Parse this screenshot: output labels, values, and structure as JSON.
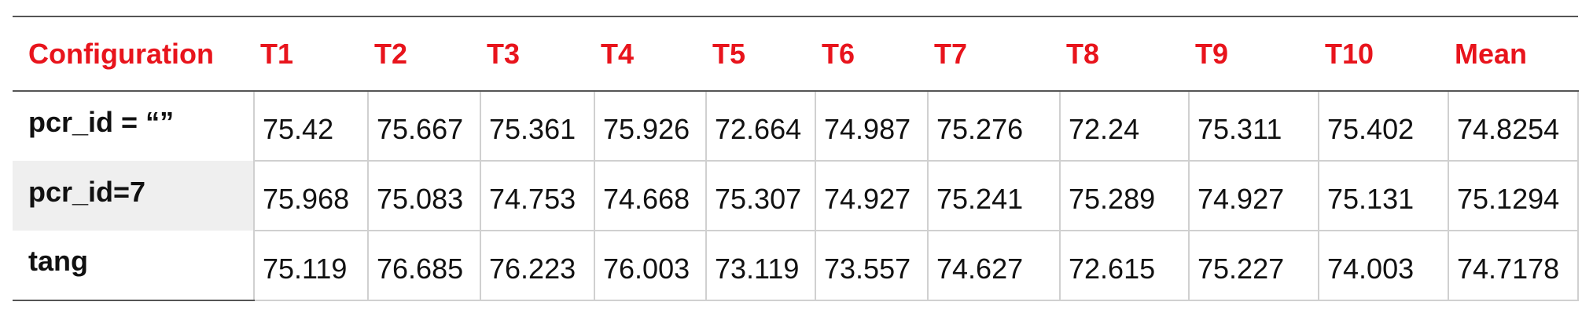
{
  "table": {
    "header": [
      "Configuration",
      "T1",
      "T2",
      "T3",
      "T4",
      "T5",
      "T6",
      "T7",
      "T8",
      "T9",
      "T10",
      "Mean"
    ],
    "rows": [
      [
        "pcr_id = “”",
        75.42,
        75.667,
        75.361,
        75.926,
        72.664,
        74.987,
        75.276,
        72.24,
        75.311,
        75.402,
        74.8254
      ],
      [
        "pcr_id=7",
        75.968,
        75.083,
        74.753,
        74.668,
        75.307,
        74.927,
        75.241,
        75.289,
        74.927,
        75.131,
        75.1294
      ],
      [
        "tang",
        75.119,
        76.685,
        76.223,
        76.003,
        73.119,
        73.557,
        74.627,
        72.615,
        75.227,
        74.003,
        74.7178
      ]
    ]
  }
}
